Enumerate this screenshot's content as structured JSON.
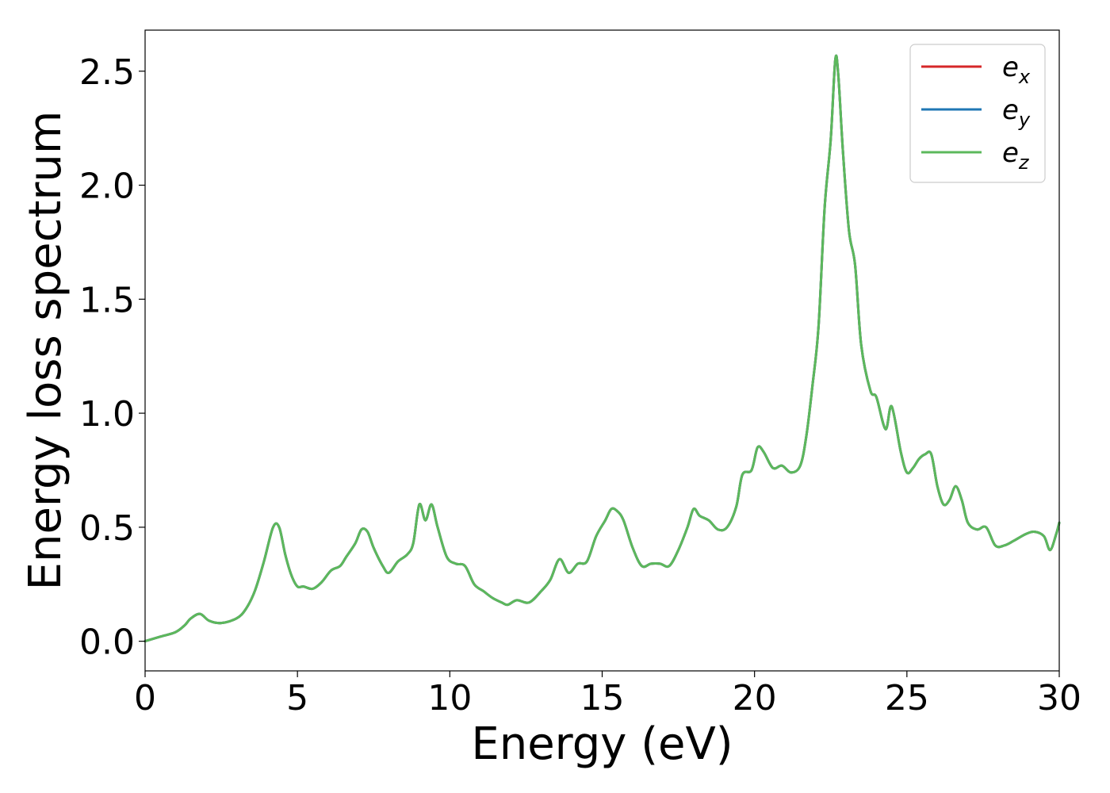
{
  "chart_data": {
    "type": "line",
    "title": "",
    "xlabel": "Energy (eV)",
    "ylabel": "Energy loss spectrum",
    "xlim": [
      0,
      30
    ],
    "ylim": [
      -0.13,
      2.68
    ],
    "xticks": [
      0,
      5,
      10,
      15,
      20,
      25,
      30
    ],
    "xtick_labels": [
      "0",
      "5",
      "10",
      "15",
      "20",
      "25",
      "30"
    ],
    "yticks": [
      0.0,
      0.5,
      1.0,
      1.5,
      2.0,
      2.5
    ],
    "ytick_labels": [
      "0.0",
      "0.5",
      "1.0",
      "1.5",
      "2.0",
      "2.5"
    ],
    "grid": false,
    "legend_position": "top-right",
    "x": [
      0,
      0.5,
      1,
      1.3,
      1.5,
      1.8,
      2.1,
      2.5,
      3,
      3.3,
      3.6,
      3.9,
      4.2,
      4.4,
      4.6,
      4.8,
      5.0,
      5.2,
      5.5,
      5.8,
      6.1,
      6.4,
      6.6,
      6.9,
      7.1,
      7.3,
      7.5,
      7.8,
      8.0,
      8.3,
      8.6,
      8.8,
      9.0,
      9.2,
      9.4,
      9.6,
      9.9,
      10.2,
      10.5,
      10.8,
      11.1,
      11.4,
      11.7,
      11.9,
      12.2,
      12.6,
      13.0,
      13.3,
      13.6,
      13.9,
      14.2,
      14.5,
      14.8,
      15.1,
      15.3,
      15.5,
      15.7,
      16.0,
      16.3,
      16.6,
      16.9,
      17.2,
      17.5,
      17.8,
      18.0,
      18.2,
      18.5,
      18.8,
      19.1,
      19.4,
      19.6,
      19.9,
      20.1,
      20.3,
      20.6,
      20.9,
      21.2,
      21.5,
      21.7,
      21.9,
      22.1,
      22.3,
      22.5,
      22.65,
      22.75,
      22.9,
      23.1,
      23.3,
      23.5,
      23.8,
      24.0,
      24.3,
      24.5,
      24.8,
      25.0,
      25.2,
      25.4,
      25.6,
      25.8,
      26.0,
      26.2,
      26.4,
      26.6,
      26.8,
      27.0,
      27.3,
      27.6,
      27.9,
      28.2,
      28.5,
      28.9,
      29.2,
      29.5,
      29.7,
      29.9,
      30.0
    ],
    "series": [
      {
        "name": "ex",
        "color": "#d62728",
        "values": [
          0,
          0.02,
          0.04,
          0.07,
          0.1,
          0.12,
          0.09,
          0.08,
          0.1,
          0.14,
          0.22,
          0.35,
          0.5,
          0.5,
          0.38,
          0.29,
          0.24,
          0.24,
          0.23,
          0.26,
          0.31,
          0.33,
          0.37,
          0.43,
          0.49,
          0.48,
          0.41,
          0.33,
          0.3,
          0.35,
          0.38,
          0.43,
          0.6,
          0.53,
          0.6,
          0.5,
          0.37,
          0.34,
          0.33,
          0.25,
          0.22,
          0.19,
          0.17,
          0.16,
          0.18,
          0.17,
          0.22,
          0.27,
          0.36,
          0.3,
          0.34,
          0.35,
          0.46,
          0.53,
          0.58,
          0.57,
          0.53,
          0.41,
          0.33,
          0.34,
          0.34,
          0.33,
          0.4,
          0.5,
          0.58,
          0.55,
          0.53,
          0.49,
          0.5,
          0.59,
          0.73,
          0.75,
          0.85,
          0.83,
          0.76,
          0.77,
          0.74,
          0.77,
          0.9,
          1.12,
          1.38,
          1.9,
          2.2,
          2.55,
          2.48,
          2.15,
          1.8,
          1.65,
          1.3,
          1.1,
          1.07,
          0.93,
          1.03,
          0.83,
          0.74,
          0.76,
          0.8,
          0.82,
          0.82,
          0.68,
          0.6,
          0.62,
          0.68,
          0.62,
          0.52,
          0.49,
          0.5,
          0.42,
          0.42,
          0.44,
          0.47,
          0.48,
          0.46,
          0.4,
          0.47,
          0.52
        ]
      },
      {
        "name": "ey",
        "color": "#1f77b4",
        "values": [
          0,
          0.02,
          0.04,
          0.07,
          0.1,
          0.12,
          0.09,
          0.08,
          0.1,
          0.14,
          0.22,
          0.35,
          0.5,
          0.5,
          0.38,
          0.29,
          0.24,
          0.24,
          0.23,
          0.26,
          0.31,
          0.33,
          0.37,
          0.43,
          0.49,
          0.48,
          0.41,
          0.33,
          0.3,
          0.35,
          0.38,
          0.43,
          0.6,
          0.53,
          0.6,
          0.5,
          0.37,
          0.34,
          0.33,
          0.25,
          0.22,
          0.19,
          0.17,
          0.16,
          0.18,
          0.17,
          0.22,
          0.27,
          0.36,
          0.3,
          0.34,
          0.35,
          0.46,
          0.53,
          0.58,
          0.57,
          0.53,
          0.41,
          0.33,
          0.34,
          0.34,
          0.33,
          0.4,
          0.5,
          0.58,
          0.55,
          0.53,
          0.49,
          0.5,
          0.59,
          0.73,
          0.75,
          0.85,
          0.83,
          0.76,
          0.77,
          0.74,
          0.77,
          0.9,
          1.12,
          1.38,
          1.9,
          2.2,
          2.55,
          2.48,
          2.15,
          1.8,
          1.65,
          1.3,
          1.1,
          1.07,
          0.93,
          1.03,
          0.83,
          0.74,
          0.76,
          0.8,
          0.82,
          0.82,
          0.68,
          0.6,
          0.62,
          0.68,
          0.62,
          0.52,
          0.49,
          0.5,
          0.42,
          0.42,
          0.44,
          0.47,
          0.48,
          0.46,
          0.4,
          0.47,
          0.52
        ]
      },
      {
        "name": "ez",
        "color": "#5cb85c",
        "values": [
          0,
          0.02,
          0.04,
          0.07,
          0.1,
          0.12,
          0.09,
          0.08,
          0.1,
          0.14,
          0.22,
          0.35,
          0.5,
          0.5,
          0.38,
          0.29,
          0.24,
          0.24,
          0.23,
          0.26,
          0.31,
          0.33,
          0.37,
          0.43,
          0.49,
          0.48,
          0.41,
          0.33,
          0.3,
          0.35,
          0.38,
          0.43,
          0.6,
          0.53,
          0.6,
          0.5,
          0.37,
          0.34,
          0.33,
          0.25,
          0.22,
          0.19,
          0.17,
          0.16,
          0.18,
          0.17,
          0.22,
          0.27,
          0.36,
          0.3,
          0.34,
          0.35,
          0.46,
          0.53,
          0.58,
          0.57,
          0.53,
          0.41,
          0.33,
          0.34,
          0.34,
          0.33,
          0.4,
          0.5,
          0.58,
          0.55,
          0.53,
          0.49,
          0.5,
          0.59,
          0.73,
          0.75,
          0.85,
          0.83,
          0.76,
          0.77,
          0.74,
          0.77,
          0.9,
          1.12,
          1.38,
          1.9,
          2.2,
          2.55,
          2.48,
          2.15,
          1.8,
          1.65,
          1.3,
          1.1,
          1.07,
          0.93,
          1.03,
          0.83,
          0.74,
          0.76,
          0.8,
          0.82,
          0.82,
          0.68,
          0.6,
          0.62,
          0.68,
          0.62,
          0.52,
          0.49,
          0.5,
          0.42,
          0.42,
          0.44,
          0.47,
          0.48,
          0.46,
          0.4,
          0.47,
          0.52
        ]
      }
    ],
    "legend": [
      {
        "base": "e",
        "sub": "x",
        "color": "#d62728"
      },
      {
        "base": "e",
        "sub": "y",
        "color": "#1f77b4"
      },
      {
        "base": "e",
        "sub": "z",
        "color": "#5cb85c"
      }
    ]
  }
}
